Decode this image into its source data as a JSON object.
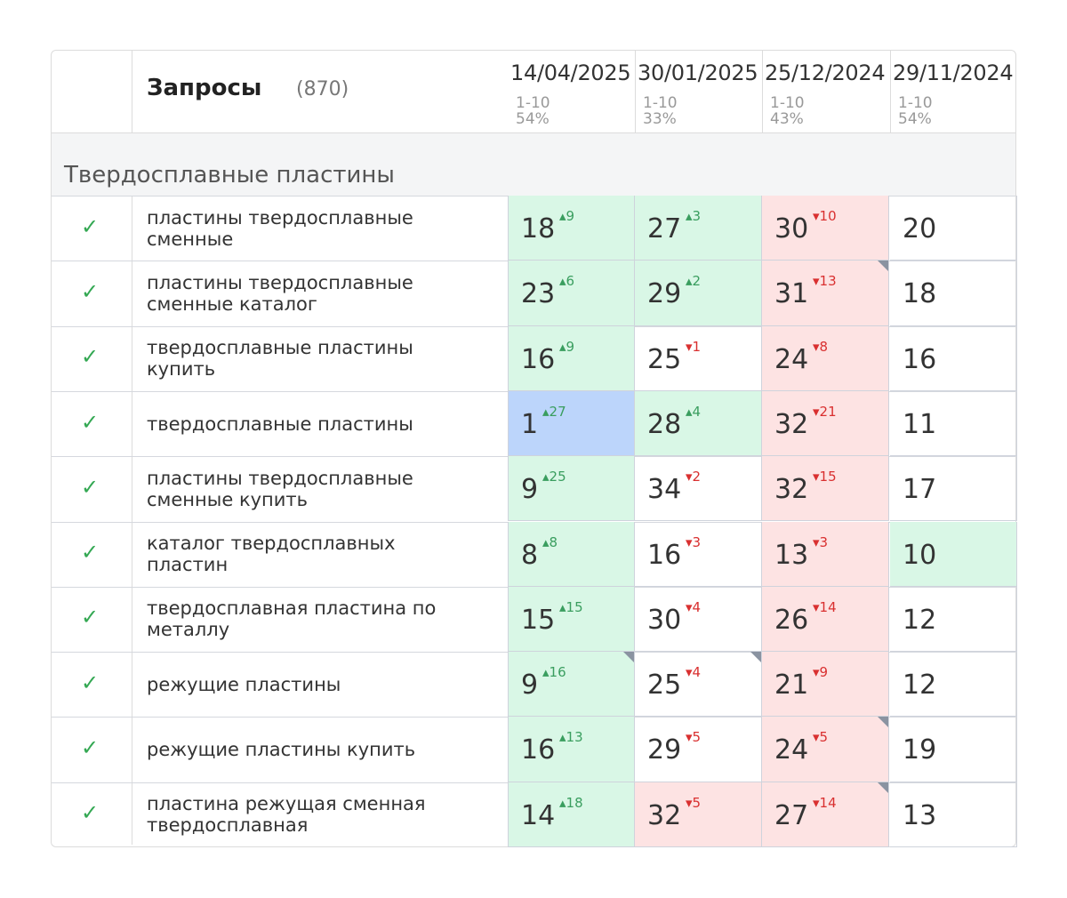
{
  "header": {
    "title": "Запросы",
    "count": "(870)",
    "columns": [
      {
        "date": "14/04/2025",
        "range": "1-10",
        "percent": "54%"
      },
      {
        "date": "30/01/2025",
        "range": "1-10",
        "percent": "33%"
      },
      {
        "date": "25/12/2024",
        "range": "1-10",
        "percent": "43%"
      },
      {
        "date": "29/11/2024",
        "range": "1-10",
        "percent": "54%"
      }
    ]
  },
  "section": {
    "title": "Твердосплавные пластины"
  },
  "icons": {
    "check": "check-icon",
    "corner_marker": "note-marker-icon"
  },
  "colors": {
    "green": "#d9f7e6",
    "red": "#fde3e3",
    "blue": "#bcd5fb",
    "up": "#3a9e5f",
    "down": "#d93030",
    "check": "#34a853"
  },
  "rows": [
    {
      "query": "пластины твердосплавные сменные",
      "cells": [
        {
          "pos": "18",
          "delta": "9",
          "dir": "up",
          "bg": "green"
        },
        {
          "pos": "27",
          "delta": "3",
          "dir": "up",
          "bg": "green"
        },
        {
          "pos": "30",
          "delta": "10",
          "dir": "down",
          "bg": "red"
        },
        {
          "pos": "20",
          "delta": "",
          "dir": "",
          "bg": ""
        }
      ]
    },
    {
      "query": "пластины твердосплавные сменные каталог",
      "cells": [
        {
          "pos": "23",
          "delta": "6",
          "dir": "up",
          "bg": "green"
        },
        {
          "pos": "29",
          "delta": "2",
          "dir": "up",
          "bg": "green"
        },
        {
          "pos": "31",
          "delta": "13",
          "dir": "down",
          "bg": "red",
          "marker": true
        },
        {
          "pos": "18",
          "delta": "",
          "dir": "",
          "bg": ""
        }
      ]
    },
    {
      "query": "твердосплавные пластины купить",
      "cells": [
        {
          "pos": "16",
          "delta": "9",
          "dir": "up",
          "bg": "green"
        },
        {
          "pos": "25",
          "delta": "1",
          "dir": "down",
          "bg": ""
        },
        {
          "pos": "24",
          "delta": "8",
          "dir": "down",
          "bg": "red"
        },
        {
          "pos": "16",
          "delta": "",
          "dir": "",
          "bg": ""
        }
      ]
    },
    {
      "query": "твердосплавные пластины",
      "cells": [
        {
          "pos": "1",
          "delta": "27",
          "dir": "up",
          "bg": "blue"
        },
        {
          "pos": "28",
          "delta": "4",
          "dir": "up",
          "bg": "green"
        },
        {
          "pos": "32",
          "delta": "21",
          "dir": "down",
          "bg": "red"
        },
        {
          "pos": "11",
          "delta": "",
          "dir": "",
          "bg": ""
        }
      ]
    },
    {
      "query": "пластины твердосплавные сменные купить",
      "cells": [
        {
          "pos": "9",
          "delta": "25",
          "dir": "up",
          "bg": "green"
        },
        {
          "pos": "34",
          "delta": "2",
          "dir": "down",
          "bg": ""
        },
        {
          "pos": "32",
          "delta": "15",
          "dir": "down",
          "bg": "red"
        },
        {
          "pos": "17",
          "delta": "",
          "dir": "",
          "bg": ""
        }
      ]
    },
    {
      "query": "каталог твердосплавных пластин",
      "cells": [
        {
          "pos": "8",
          "delta": "8",
          "dir": "up",
          "bg": "green"
        },
        {
          "pos": "16",
          "delta": "3",
          "dir": "down",
          "bg": ""
        },
        {
          "pos": "13",
          "delta": "3",
          "dir": "down",
          "bg": "red"
        },
        {
          "pos": "10",
          "delta": "",
          "dir": "",
          "bg": "green"
        }
      ]
    },
    {
      "query": "твердосплавная пластина по металлу",
      "cells": [
        {
          "pos": "15",
          "delta": "15",
          "dir": "up",
          "bg": "green"
        },
        {
          "pos": "30",
          "delta": "4",
          "dir": "down",
          "bg": ""
        },
        {
          "pos": "26",
          "delta": "14",
          "dir": "down",
          "bg": "red"
        },
        {
          "pos": "12",
          "delta": "",
          "dir": "",
          "bg": ""
        }
      ]
    },
    {
      "query": "режущие пластины",
      "cells": [
        {
          "pos": "9",
          "delta": "16",
          "dir": "up",
          "bg": "green",
          "marker": true
        },
        {
          "pos": "25",
          "delta": "4",
          "dir": "down",
          "bg": "",
          "marker": true
        },
        {
          "pos": "21",
          "delta": "9",
          "dir": "down",
          "bg": "red"
        },
        {
          "pos": "12",
          "delta": "",
          "dir": "",
          "bg": ""
        }
      ]
    },
    {
      "query": "режущие пластины купить",
      "cells": [
        {
          "pos": "16",
          "delta": "13",
          "dir": "up",
          "bg": "green"
        },
        {
          "pos": "29",
          "delta": "5",
          "dir": "down",
          "bg": ""
        },
        {
          "pos": "24",
          "delta": "5",
          "dir": "down",
          "bg": "red",
          "marker": true
        },
        {
          "pos": "19",
          "delta": "",
          "dir": "",
          "bg": ""
        }
      ]
    },
    {
      "query": "пластина режущая сменная твердосплавная",
      "cells": [
        {
          "pos": "14",
          "delta": "18",
          "dir": "up",
          "bg": "green"
        },
        {
          "pos": "32",
          "delta": "5",
          "dir": "down",
          "bg": "red"
        },
        {
          "pos": "27",
          "delta": "14",
          "dir": "down",
          "bg": "red",
          "marker": true
        },
        {
          "pos": "13",
          "delta": "",
          "dir": "",
          "bg": ""
        }
      ]
    }
  ]
}
